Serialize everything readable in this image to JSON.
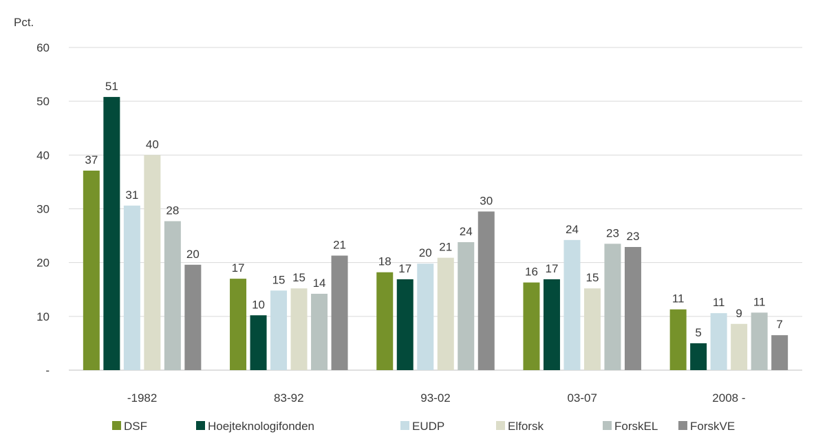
{
  "chart_data": {
    "type": "bar",
    "ylabel": "Pct.",
    "ylim": [
      0,
      60
    ],
    "yticks": [
      {
        "value": 0,
        "label": "-"
      },
      {
        "value": 10,
        "label": "10"
      },
      {
        "value": 20,
        "label": "20"
      },
      {
        "value": 30,
        "label": "30"
      },
      {
        "value": 40,
        "label": "40"
      },
      {
        "value": 50,
        "label": "50"
      },
      {
        "value": 60,
        "label": "60"
      }
    ],
    "grid": true,
    "legend_position": "bottom",
    "categories": [
      "-1982",
      "83-92",
      "93-02",
      "03-07",
      "2008 -"
    ],
    "series": [
      {
        "name": "DSF",
        "color": "#76922a",
        "values": [
          37.1,
          17.0,
          18.2,
          16.3,
          11.3
        ],
        "labels": [
          "37",
          "17",
          "18",
          "16",
          "11"
        ]
      },
      {
        "name": "Hoejteknologifonden",
        "color": "#034a3a",
        "values": [
          50.8,
          10.2,
          16.9,
          16.9,
          5.0
        ],
        "labels": [
          "51",
          "10",
          "17",
          "17",
          "5"
        ]
      },
      {
        "name": "EUDP",
        "color": "#c7dde5",
        "values": [
          30.6,
          14.8,
          19.8,
          24.2,
          10.6
        ],
        "labels": [
          "31",
          "15",
          "20",
          "24",
          "11"
        ]
      },
      {
        "name": "Elforsk",
        "color": "#dcddc9",
        "values": [
          40.0,
          15.2,
          20.9,
          15.2,
          8.6
        ],
        "labels": [
          "40",
          "15",
          "21",
          "15",
          "9"
        ]
      },
      {
        "name": "ForskEL",
        "color": "#b8c3c0",
        "values": [
          27.7,
          14.2,
          23.8,
          23.5,
          10.7
        ],
        "labels": [
          "28",
          "14",
          "24",
          "23",
          "11"
        ]
      },
      {
        "name": "ForskVE",
        "color": "#8c8c8c",
        "values": [
          19.6,
          21.3,
          29.5,
          22.9,
          6.5
        ],
        "labels": [
          "20",
          "21",
          "30",
          "23",
          "7"
        ]
      }
    ]
  }
}
